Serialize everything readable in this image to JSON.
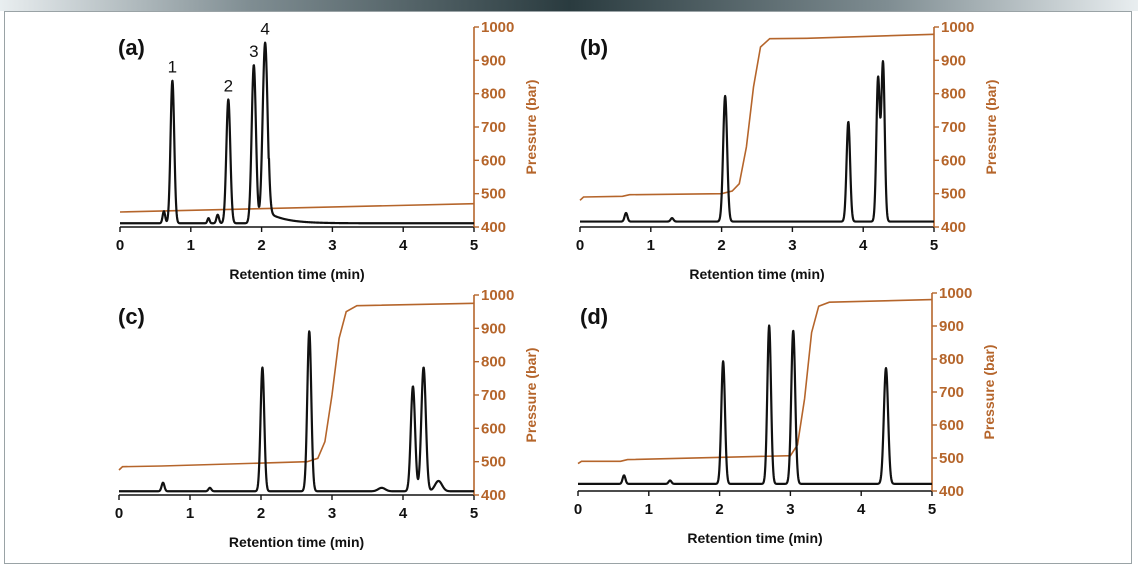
{
  "figure": {
    "colors": {
      "signal": "#111111",
      "pressure": "#b5652b",
      "axis": "#111111"
    }
  },
  "chart_data": [
    {
      "type": "line",
      "panel": "(a)",
      "xlabel": "Retention time (min)",
      "ylabel_right": "Pressure (bar)",
      "xlim": [
        0,
        5
      ],
      "xticks": [
        "0",
        "1",
        "2",
        "3",
        "4",
        "5"
      ],
      "ylim_right": [
        400,
        1000
      ],
      "yticks_right": [
        "400",
        "500",
        "600",
        "700",
        "800",
        "900",
        "1000"
      ],
      "peak_labels": [
        {
          "text": "1",
          "x": 0.74
        },
        {
          "text": "2",
          "x": 1.53
        },
        {
          "text": "3",
          "x": 1.89
        },
        {
          "text": "4",
          "x": 2.05
        }
      ],
      "series": [
        {
          "name": "Chromatogram",
          "color": "#111111",
          "baseline": 0.01,
          "peaks": [
            {
              "t": 0.62,
              "h": 0.07,
              "w": 0.018
            },
            {
              "t": 0.74,
              "h": 0.83,
              "w": 0.026
            },
            {
              "t": 1.25,
              "h": 0.03,
              "w": 0.015
            },
            {
              "t": 1.38,
              "h": 0.05,
              "w": 0.018
            },
            {
              "t": 1.53,
              "h": 0.72,
              "w": 0.028
            },
            {
              "t": 1.89,
              "h": 0.92,
              "w": 0.03
            },
            {
              "t": 2.05,
              "h": 1.05,
              "w": 0.035
            }
          ],
          "tail": {
            "t": 2.1,
            "amp": 0.06,
            "decay": 0.25
          }
        },
        {
          "name": "Pressure (bar)",
          "color": "#b5652b",
          "points": [
            [
              0,
              445
            ],
            [
              5,
              470
            ]
          ]
        }
      ]
    },
    {
      "type": "line",
      "panel": "(b)",
      "xlabel": "Retention time (min)",
      "ylabel_right": "Pressure (bar)",
      "xlim": [
        0,
        5
      ],
      "xticks": [
        "0",
        "1",
        "2",
        "3",
        "4",
        "5"
      ],
      "ylim_right": [
        400,
        1000
      ],
      "yticks_right": [
        "400",
        "500",
        "600",
        "700",
        "800",
        "900",
        "1000"
      ],
      "peak_labels": [],
      "series": [
        {
          "name": "Chromatogram",
          "color": "#111111",
          "baseline": 0.02,
          "peaks": [
            {
              "t": 0.65,
              "h": 0.05,
              "w": 0.02
            },
            {
              "t": 1.3,
              "h": 0.02,
              "w": 0.02
            },
            {
              "t": 2.05,
              "h": 0.73,
              "w": 0.028
            },
            {
              "t": 3.79,
              "h": 0.58,
              "w": 0.025
            },
            {
              "t": 4.21,
              "h": 0.83,
              "w": 0.024
            },
            {
              "t": 4.28,
              "h": 0.92,
              "w": 0.024
            }
          ],
          "tail": {
            "t": 2.6,
            "amp": 0.0,
            "decay": 0.3
          }
        },
        {
          "name": "Pressure (bar)",
          "color": "#b5652b",
          "points": [
            [
              0,
              480
            ],
            [
              0.05,
              490
            ],
            [
              0.6,
              492
            ],
            [
              0.7,
              497
            ],
            [
              2.0,
              500
            ],
            [
              2.15,
              508
            ],
            [
              2.25,
              530
            ],
            [
              2.35,
              640
            ],
            [
              2.45,
              820
            ],
            [
              2.55,
              940
            ],
            [
              2.68,
              965
            ],
            [
              3.2,
              966
            ],
            [
              5,
              978
            ]
          ]
        }
      ]
    },
    {
      "type": "line",
      "panel": "(c)",
      "xlabel": "Retention time (min)",
      "ylabel_right": "Pressure (bar)",
      "xlim": [
        0,
        5
      ],
      "xticks": [
        "0",
        "1",
        "2",
        "3",
        "4",
        "5"
      ],
      "ylim_right": [
        400,
        1000
      ],
      "yticks_right": [
        "400",
        "500",
        "600",
        "700",
        "800",
        "900",
        "1000"
      ],
      "peak_labels": [],
      "series": [
        {
          "name": "Chromatogram",
          "color": "#111111",
          "baseline": 0.01,
          "peaks": [
            {
              "t": 0.62,
              "h": 0.05,
              "w": 0.02
            },
            {
              "t": 1.28,
              "h": 0.02,
              "w": 0.02
            },
            {
              "t": 2.02,
              "h": 0.72,
              "w": 0.026
            },
            {
              "t": 2.68,
              "h": 0.93,
              "w": 0.028
            },
            {
              "t": 3.7,
              "h": 0.02,
              "w": 0.05
            },
            {
              "t": 4.14,
              "h": 0.61,
              "w": 0.03
            },
            {
              "t": 4.29,
              "h": 0.72,
              "w": 0.032
            },
            {
              "t": 4.5,
              "h": 0.06,
              "w": 0.05
            }
          ],
          "tail": {
            "t": 2.8,
            "amp": 0.0,
            "decay": 0.3
          }
        },
        {
          "name": "Pressure (bar)",
          "color": "#b5652b",
          "points": [
            [
              0,
              475
            ],
            [
              0.05,
              485
            ],
            [
              0.6,
              487
            ],
            [
              2.65,
              500
            ],
            [
              2.8,
              510
            ],
            [
              2.9,
              560
            ],
            [
              3.0,
              700
            ],
            [
              3.1,
              870
            ],
            [
              3.2,
              950
            ],
            [
              3.35,
              968
            ],
            [
              5,
              975
            ]
          ]
        }
      ]
    },
    {
      "type": "line",
      "panel": "(d)",
      "xlabel": "Retention time (min)",
      "ylabel_right": "Pressure (bar)",
      "xlim": [
        0,
        5
      ],
      "xticks": [
        "0",
        "1",
        "2",
        "3",
        "4",
        "5"
      ],
      "ylim_right": [
        400,
        1000
      ],
      "yticks_right": [
        "400",
        "500",
        "600",
        "700",
        "800",
        "900",
        "1000"
      ],
      "peak_labels": [],
      "series": [
        {
          "name": "Chromatogram",
          "color": "#111111",
          "baseline": 0.03,
          "peaks": [
            {
              "t": 0.65,
              "h": 0.05,
              "w": 0.02
            },
            {
              "t": 1.3,
              "h": 0.02,
              "w": 0.02
            },
            {
              "t": 2.05,
              "h": 0.72,
              "w": 0.026
            },
            {
              "t": 2.7,
              "h": 0.93,
              "w": 0.026
            },
            {
              "t": 3.04,
              "h": 0.9,
              "w": 0.028
            },
            {
              "t": 4.35,
              "h": 0.68,
              "w": 0.03
            }
          ],
          "tail": {
            "t": 3.2,
            "amp": 0.0,
            "decay": 0.3
          }
        },
        {
          "name": "Pressure (bar)",
          "color": "#b5652b",
          "points": [
            [
              0,
              483
            ],
            [
              0.05,
              490
            ],
            [
              0.6,
              490
            ],
            [
              0.7,
              495
            ],
            [
              3.0,
              507
            ],
            [
              3.1,
              540
            ],
            [
              3.2,
              680
            ],
            [
              3.3,
              880
            ],
            [
              3.4,
              960
            ],
            [
              3.55,
              972
            ],
            [
              5,
              980
            ]
          ]
        }
      ]
    }
  ]
}
